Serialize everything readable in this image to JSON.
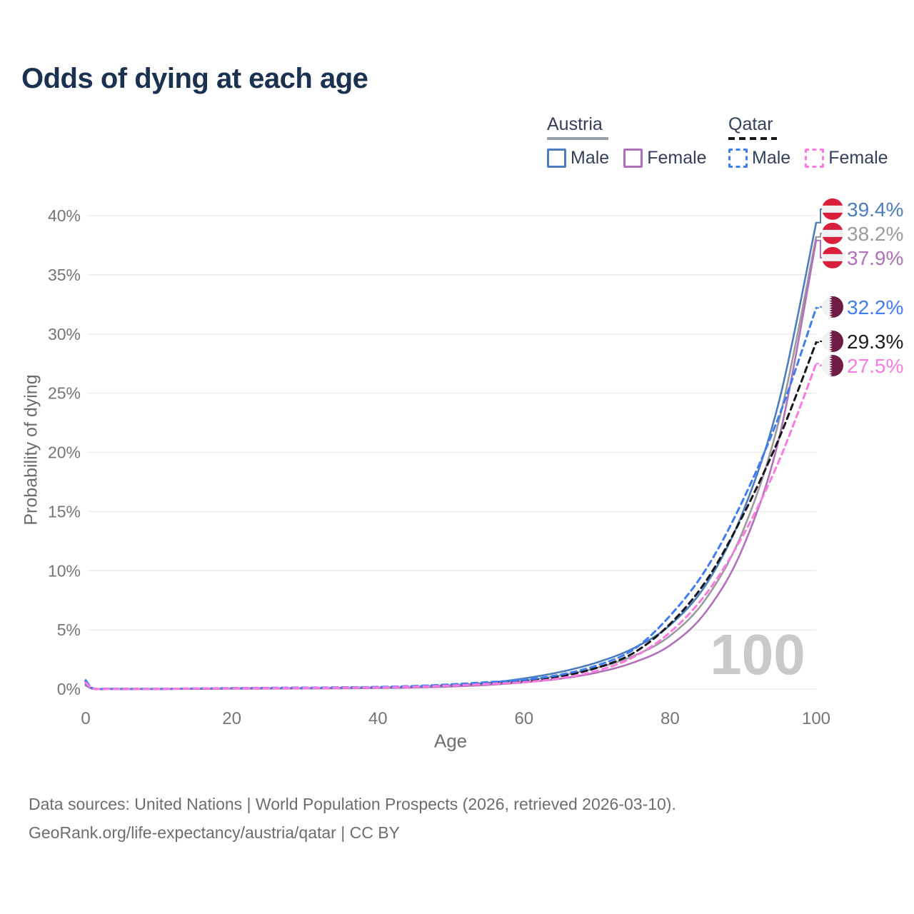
{
  "title": "Odds of dying at each age",
  "legend": {
    "groups": [
      {
        "label": "Austria",
        "line_style": "solid",
        "line_color": "#9aa0a8",
        "items": [
          {
            "label": "Male",
            "color": "#4d7dbe"
          },
          {
            "label": "Female",
            "color": "#b170ba"
          }
        ]
      },
      {
        "label": "Qatar",
        "line_style": "dashed",
        "line_color": "#17171c",
        "items": [
          {
            "label": "Male",
            "color": "#3f7df2"
          },
          {
            "label": "Female",
            "color": "#fb7ae1"
          }
        ]
      }
    ]
  },
  "watermark": "100",
  "footer": {
    "line1": "Data sources: United Nations | World Population Prospects (2026, retrieved 2026-03-10).",
    "line2": "GeoRank.org/life-expectancy/austria/qatar | CC BY"
  },
  "chart_data": {
    "type": "line",
    "title": "Odds of dying at each age",
    "xlabel": "Age",
    "ylabel": "Probability of dying",
    "xlim": [
      0,
      100
    ],
    "ylim": [
      0,
      40
    ],
    "grid": "horizontal",
    "legend_position": "top-right",
    "xticks": [
      0,
      20,
      40,
      60,
      80,
      100
    ],
    "yticks": [
      "0%",
      "5%",
      "10%",
      "15%",
      "20%",
      "25%",
      "30%",
      "35%",
      "40%"
    ],
    "ytick_values": [
      0,
      5,
      10,
      15,
      20,
      25,
      30,
      35,
      40
    ],
    "x": [
      0,
      1,
      3,
      5,
      10,
      15,
      20,
      25,
      30,
      35,
      40,
      45,
      50,
      55,
      60,
      65,
      70,
      75,
      80,
      85,
      90,
      95,
      100
    ],
    "series": [
      {
        "name": "Austria Male",
        "country": "Austria",
        "component": "Male",
        "color": "#4d7dbe",
        "dash": false,
        "end_label": "39.4%",
        "label_color": "#4d7dbe",
        "flag": "austria",
        "y": [
          0.42,
          0.05,
          0.02,
          0.01,
          0.01,
          0.04,
          0.06,
          0.07,
          0.08,
          0.1,
          0.13,
          0.2,
          0.32,
          0.52,
          0.9,
          1.45,
          2.25,
          3.45,
          5.4,
          8.9,
          15.0,
          24.5,
          39.4
        ]
      },
      {
        "name": "Austria All",
        "country": "Austria",
        "component": "All",
        "color": "#9b9b9f",
        "dash": false,
        "end_label": "38.2%",
        "label_color": "#9b9b9b",
        "flag": "austria",
        "y": [
          0.36,
          0.04,
          0.02,
          0.01,
          0.01,
          0.03,
          0.04,
          0.05,
          0.06,
          0.08,
          0.11,
          0.16,
          0.26,
          0.43,
          0.72,
          1.15,
          1.8,
          2.8,
          4.5,
          7.7,
          13.4,
          22.9,
          38.2
        ]
      },
      {
        "name": "Austria Female",
        "country": "Austria",
        "component": "Female",
        "color": "#b170ba",
        "dash": false,
        "end_label": "37.9%",
        "label_color": "#b170ba",
        "flag": "austria",
        "y": [
          0.31,
          0.03,
          0.01,
          0.01,
          0.01,
          0.02,
          0.03,
          0.04,
          0.05,
          0.06,
          0.09,
          0.13,
          0.21,
          0.35,
          0.56,
          0.88,
          1.4,
          2.25,
          3.7,
          6.6,
          12.0,
          21.4,
          37.9
        ]
      },
      {
        "name": "Qatar Male",
        "country": "Qatar",
        "component": "Male",
        "color": "#3f7df2",
        "dash": true,
        "end_label": "32.2%",
        "label_color": "#3f7df2",
        "flag": "qatar",
        "y": [
          0.75,
          0.06,
          0.03,
          0.02,
          0.02,
          0.05,
          0.08,
          0.1,
          0.12,
          0.14,
          0.18,
          0.26,
          0.4,
          0.58,
          0.78,
          1.22,
          2.0,
          3.35,
          6.2,
          10.2,
          16.0,
          23.2,
          32.2
        ]
      },
      {
        "name": "Qatar All",
        "country": "Qatar",
        "component": "All",
        "color": "#17171c",
        "dash": true,
        "end_label": "29.3%",
        "label_color": "#1c1c1c",
        "flag": "qatar",
        "y": [
          0.65,
          0.05,
          0.03,
          0.02,
          0.02,
          0.04,
          0.07,
          0.09,
          0.11,
          0.13,
          0.16,
          0.23,
          0.35,
          0.5,
          0.68,
          1.08,
          1.8,
          3.05,
          5.5,
          9.2,
          14.7,
          21.3,
          29.3
        ]
      },
      {
        "name": "Qatar Female",
        "country": "Qatar",
        "component": "Female",
        "color": "#fb7ae1",
        "dash": true,
        "end_label": "27.5%",
        "label_color": "#fb7ae1",
        "flag": "qatar",
        "y": [
          0.55,
          0.05,
          0.02,
          0.02,
          0.02,
          0.04,
          0.06,
          0.08,
          0.09,
          0.11,
          0.14,
          0.2,
          0.3,
          0.43,
          0.58,
          0.92,
          1.55,
          2.7,
          4.8,
          8.1,
          13.0,
          19.4,
          27.5
        ]
      }
    ],
    "flag_colors": {
      "austria_red": "#da1f3d",
      "austria_white": "#f0f0f2",
      "qatar_maroon": "#701c45",
      "qatar_white": "#f2f2f2"
    }
  }
}
